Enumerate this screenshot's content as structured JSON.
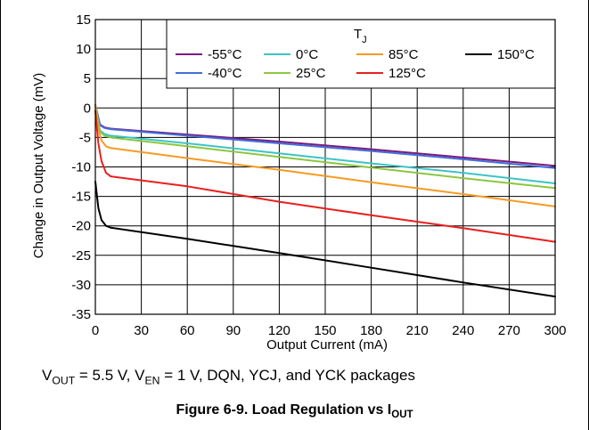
{
  "chart_data": {
    "type": "line",
    "xlabel": "Output Current (mA)",
    "ylabel": "Change in Output Voltage (mV)",
    "xlim": [
      0,
      300
    ],
    "ylim": [
      -35,
      15
    ],
    "xticks": [
      0,
      30,
      60,
      90,
      120,
      150,
      180,
      210,
      240,
      270,
      300
    ],
    "yticks": [
      15,
      10,
      5,
      0,
      -5,
      -10,
      -15,
      -20,
      -25,
      -30,
      -35
    ],
    "grid": true,
    "legend": {
      "title": "T",
      "title_sub": "J",
      "placement": "top-right"
    },
    "series": [
      {
        "name": "-55°C",
        "color": "#7b1a7e",
        "points": [
          [
            0,
            0.5
          ],
          [
            3,
            -2.8
          ],
          [
            6,
            -3.3
          ],
          [
            10,
            -3.5
          ],
          [
            60,
            -4.5
          ],
          [
            120,
            -5.7
          ],
          [
            180,
            -7.0
          ],
          [
            240,
            -8.4
          ],
          [
            300,
            -9.8
          ]
        ]
      },
      {
        "name": "-40°C",
        "color": "#3f6fd8",
        "points": [
          [
            0,
            0.5
          ],
          [
            3,
            -2.9
          ],
          [
            6,
            -3.4
          ],
          [
            10,
            -3.6
          ],
          [
            60,
            -4.7
          ],
          [
            120,
            -6.0
          ],
          [
            180,
            -7.3
          ],
          [
            240,
            -8.7
          ],
          [
            300,
            -10.2
          ]
        ]
      },
      {
        "name": "0°C",
        "color": "#3cc4c4",
        "points": [
          [
            0,
            0.5
          ],
          [
            3,
            -3.8
          ],
          [
            6,
            -4.4
          ],
          [
            10,
            -4.7
          ],
          [
            60,
            -6.0
          ],
          [
            120,
            -7.7
          ],
          [
            180,
            -9.4
          ],
          [
            240,
            -11.0
          ],
          [
            300,
            -12.8
          ]
        ]
      },
      {
        "name": "25°C",
        "color": "#8cc63f",
        "points": [
          [
            0,
            0.5
          ],
          [
            3,
            -4.0
          ],
          [
            6,
            -4.7
          ],
          [
            10,
            -5.0
          ],
          [
            60,
            -6.5
          ],
          [
            120,
            -8.3
          ],
          [
            180,
            -10.1
          ],
          [
            240,
            -11.9
          ],
          [
            300,
            -13.6
          ]
        ]
      },
      {
        "name": "85°C",
        "color": "#f79a22",
        "points": [
          [
            0,
            0.3
          ],
          [
            2,
            -3.5
          ],
          [
            4,
            -5.5
          ],
          [
            7,
            -6.5
          ],
          [
            10,
            -6.8
          ],
          [
            60,
            -8.5
          ],
          [
            120,
            -10.5
          ],
          [
            180,
            -12.6
          ],
          [
            240,
            -14.6
          ],
          [
            300,
            -16.7
          ]
        ]
      },
      {
        "name": "125°C",
        "color": "#e8201e",
        "points": [
          [
            0,
            -0.5
          ],
          [
            2,
            -6.0
          ],
          [
            4,
            -9.0
          ],
          [
            7,
            -11.0
          ],
          [
            10,
            -11.6
          ],
          [
            60,
            -13.3
          ],
          [
            120,
            -15.9
          ],
          [
            180,
            -18.2
          ],
          [
            240,
            -20.4
          ],
          [
            300,
            -22.7
          ]
        ]
      },
      {
        "name": "150°C",
        "color": "#000000",
        "points": [
          [
            0,
            -12.5
          ],
          [
            2,
            -17.0
          ],
          [
            4,
            -19.0
          ],
          [
            7,
            -20.0
          ],
          [
            10,
            -20.3
          ],
          [
            60,
            -22.2
          ],
          [
            120,
            -24.6
          ],
          [
            180,
            -27.1
          ],
          [
            240,
            -29.6
          ],
          [
            300,
            -32.0
          ]
        ]
      }
    ]
  },
  "conditions": {
    "v_out_main": "V",
    "v_out_sub": "OUT",
    "v_out_rest": " = 5.5 V, ",
    "v_en_main": "V",
    "v_en_sub": "EN",
    "v_en_rest": " = 1 V, DQN, YCJ, and YCK packages"
  },
  "caption": {
    "main": "Figure 6-9. Load Regulation vs I",
    "sub": "OUT"
  }
}
